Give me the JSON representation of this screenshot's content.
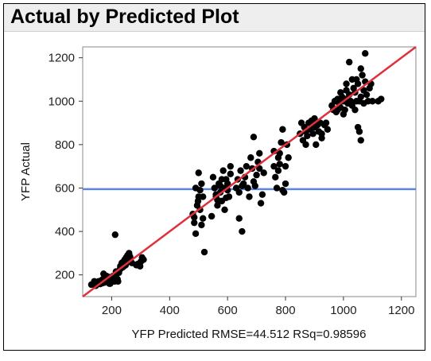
{
  "chart_data": {
    "type": "scatter",
    "title": "Actual by Predicted Plot",
    "xlabel": "YFP Predicted RMSE=44.512 RSq=0.98596",
    "ylabel": "YFP Actual",
    "xlim": [
      100,
      1250
    ],
    "ylim": [
      100,
      1250
    ],
    "xticks": [
      200,
      400,
      600,
      800,
      1000,
      1200
    ],
    "yticks": [
      200,
      400,
      600,
      800,
      1000,
      1200
    ],
    "grid": false,
    "reference_lines": {
      "fit_line": {
        "from": [
          100,
          100
        ],
        "to": [
          1250,
          1250
        ],
        "color": "#e0303c"
      },
      "mean_line": {
        "y": 595,
        "color": "#5b83e8"
      }
    },
    "point_color": "#000000",
    "series": [
      {
        "points": [
          [
            130,
            155
          ],
          [
            138,
            160
          ],
          [
            145,
            150
          ],
          [
            150,
            165
          ],
          [
            155,
            170
          ],
          [
            160,
            158
          ],
          [
            165,
            175
          ],
          [
            170,
            180
          ],
          [
            175,
            165
          ],
          [
            180,
            185
          ],
          [
            185,
            170
          ],
          [
            190,
            190
          ],
          [
            195,
            160
          ],
          [
            200,
            175
          ],
          [
            205,
            195
          ],
          [
            210,
            170
          ],
          [
            215,
            200
          ],
          [
            220,
            180
          ],
          [
            225,
            210
          ],
          [
            230,
            240
          ],
          [
            235,
            255
          ],
          [
            240,
            260
          ],
          [
            245,
            270
          ],
          [
            250,
            280
          ],
          [
            255,
            290
          ],
          [
            260,
            300
          ],
          [
            265,
            275
          ],
          [
            270,
            255
          ],
          [
            228,
            225
          ],
          [
            238,
            235
          ],
          [
            248,
            245
          ],
          [
            258,
            260
          ],
          [
            212,
            385
          ],
          [
            205,
            180
          ],
          [
            198,
            172
          ],
          [
            188,
            176
          ],
          [
            178,
            168
          ],
          [
            168,
            162
          ],
          [
            158,
            164
          ],
          [
            148,
            158
          ],
          [
            142,
            166
          ],
          [
            215,
            215
          ],
          [
            242,
            240
          ],
          [
            263,
            285
          ],
          [
            172,
            205
          ],
          [
            232,
            230
          ],
          [
            290,
            250
          ],
          [
            300,
            260
          ],
          [
            305,
            280
          ],
          [
            285,
            245
          ],
          [
            298,
            240
          ],
          [
            310,
            270
          ],
          [
            140,
            170
          ],
          [
            182,
            195
          ],
          [
            192,
            160
          ],
          [
            222,
            170
          ],
          [
            480,
            480
          ],
          [
            485,
            440
          ],
          [
            490,
            390
          ],
          [
            495,
            520
          ],
          [
            500,
            560
          ],
          [
            505,
            500
          ],
          [
            510,
            620
          ],
          [
            500,
            670
          ],
          [
            515,
            460
          ],
          [
            520,
            305
          ],
          [
            490,
            600
          ],
          [
            510,
            430
          ],
          [
            498,
            540
          ],
          [
            515,
            560
          ],
          [
            485,
            465
          ],
          [
            505,
            590
          ],
          [
            550,
            650
          ],
          [
            555,
            600
          ],
          [
            560,
            560
          ],
          [
            565,
            520
          ],
          [
            570,
            620
          ],
          [
            575,
            580
          ],
          [
            580,
            540
          ],
          [
            585,
            680
          ],
          [
            590,
            600
          ],
          [
            595,
            640
          ],
          [
            600,
            590
          ],
          [
            605,
            560
          ],
          [
            610,
            700
          ],
          [
            560,
            570
          ],
          [
            575,
            610
          ],
          [
            600,
            620
          ],
          [
            590,
            500
          ],
          [
            580,
            640
          ],
          [
            610,
            665
          ],
          [
            545,
            470
          ],
          [
            565,
            545
          ],
          [
            595,
            555
          ],
          [
            630,
            600
          ],
          [
            635,
            640
          ],
          [
            640,
            580
          ],
          [
            645,
            680
          ],
          [
            650,
            400
          ],
          [
            655,
            620
          ],
          [
            660,
            650
          ],
          [
            665,
            700
          ],
          [
            670,
            600
          ],
          [
            675,
            560
          ],
          [
            680,
            740
          ],
          [
            685,
            690
          ],
          [
            690,
            630
          ],
          [
            695,
            610
          ],
          [
            700,
            660
          ],
          [
            705,
            720
          ],
          [
            710,
            690
          ],
          [
            715,
            530
          ],
          [
            720,
            570
          ],
          [
            725,
            670
          ],
          [
            690,
            835
          ],
          [
            710,
            760
          ],
          [
            640,
            460
          ],
          [
            650,
            610
          ],
          [
            760,
            700
          ],
          [
            765,
            650
          ],
          [
            770,
            600
          ],
          [
            775,
            740
          ],
          [
            780,
            760
          ],
          [
            785,
            810
          ],
          [
            790,
            870
          ],
          [
            795,
            580
          ],
          [
            800,
            700
          ],
          [
            805,
            800
          ],
          [
            810,
            740
          ],
          [
            760,
            770
          ],
          [
            780,
            710
          ],
          [
            800,
            620
          ],
          [
            790,
            590
          ],
          [
            775,
            680
          ],
          [
            850,
            850
          ],
          [
            855,
            900
          ],
          [
            860,
            820
          ],
          [
            865,
            880
          ],
          [
            870,
            860
          ],
          [
            875,
            840
          ],
          [
            880,
            900
          ],
          [
            885,
            870
          ],
          [
            890,
            910
          ],
          [
            895,
            850
          ],
          [
            900,
            880
          ],
          [
            905,
            800
          ],
          [
            910,
            890
          ],
          [
            915,
            860
          ],
          [
            920,
            900
          ],
          [
            925,
            850
          ],
          [
            935,
            890
          ],
          [
            940,
            900
          ],
          [
            870,
            800
          ],
          [
            900,
            920
          ],
          [
            925,
            830
          ],
          [
            945,
            870
          ],
          [
            960,
            980
          ],
          [
            965,
            960
          ],
          [
            970,
            1000
          ],
          [
            975,
            950
          ],
          [
            980,
            1010
          ],
          [
            985,
            990
          ],
          [
            990,
            970
          ],
          [
            995,
            1020
          ],
          [
            1000,
            1000
          ],
          [
            1005,
            960
          ],
          [
            1010,
            1050
          ],
          [
            1015,
            990
          ],
          [
            1020,
            1030
          ],
          [
            1025,
            1000
          ],
          [
            1030,
            980
          ],
          [
            1035,
            1060
          ],
          [
            1040,
            1040
          ],
          [
            1045,
            1100
          ],
          [
            1050,
            1080
          ],
          [
            1055,
            1000
          ],
          [
            1060,
            1020
          ],
          [
            1065,
            1120
          ],
          [
            1070,
            1050
          ],
          [
            1075,
            1090
          ],
          [
            1080,
            1030
          ],
          [
            1085,
            1000
          ],
          [
            1090,
            1060
          ],
          [
            1095,
            1080
          ],
          [
            1100,
            1000
          ],
          [
            1050,
            880
          ],
          [
            1055,
            860
          ],
          [
            1060,
            820
          ],
          [
            1020,
            1180
          ],
          [
            1075,
            1220
          ],
          [
            1120,
            1000
          ],
          [
            1130,
            1010
          ],
          [
            990,
            1040
          ],
          [
            1000,
            940
          ],
          [
            1040,
            960
          ],
          [
            1010,
            1080
          ],
          [
            1030,
            1100
          ],
          [
            1060,
            1150
          ],
          [
            980,
            960
          ],
          [
            1005,
            1010
          ],
          [
            1045,
            1000
          ],
          [
            1070,
            990
          ]
        ]
      }
    ]
  }
}
